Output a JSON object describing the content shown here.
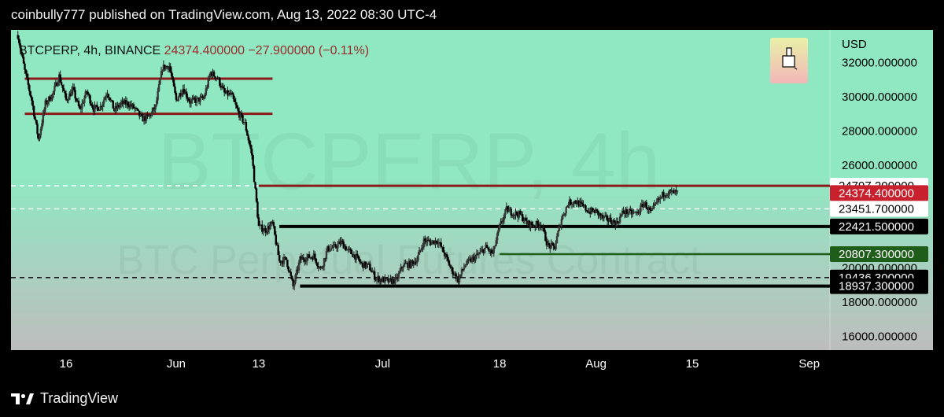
{
  "header": {
    "published": "coinbully777 published on TradingView.com, Aug 13, 2022 08:30 UTC-4"
  },
  "footer": {
    "brand": "TradingView"
  },
  "colors": {
    "bg_top": "#8fe8c2",
    "bg_bottom": "#bdbdbd",
    "red_line": "#8b1a1a",
    "black_line": "#000000",
    "green_line": "#1f5d1a",
    "label_red": "#c8202c",
    "label_green": "#1f5d1a",
    "quote_text": "#9c2a2a"
  },
  "chart_data": {
    "type": "candlestick",
    "symbol": "BTCPERP",
    "interval": "4h",
    "exchange": "BINANCE",
    "last_price": "24374.400000",
    "change": "−27.900000",
    "change_pct": "(−0.11%)",
    "watermark_symbol": "BTCPERP, 4h",
    "watermark_desc": "BTC Perpetual Futures Contract",
    "y_axis": {
      "unit": "USD",
      "ylim": [
        15200,
        33900
      ],
      "ticks": [
        {
          "value": 32000,
          "label": "32000.000000"
        },
        {
          "value": 30000,
          "label": "30000.000000"
        },
        {
          "value": 28000,
          "label": "28000.000000"
        },
        {
          "value": 26000,
          "label": "26000.000000"
        },
        {
          "value": 20000,
          "label": "20000.000000"
        },
        {
          "value": 18000,
          "label": "18000.000000"
        },
        {
          "value": 16000,
          "label": "16000.000000"
        }
      ]
    },
    "x_axis": {
      "xlim": [
        "2022-05-08",
        "2022-09-04"
      ],
      "ticks": [
        {
          "date": "2022-05-16",
          "label": "16"
        },
        {
          "date": "2022-06-01",
          "label": "Jun"
        },
        {
          "date": "2022-06-13",
          "label": "13"
        },
        {
          "date": "2022-07-01",
          "label": "Jul"
        },
        {
          "date": "2022-07-18",
          "label": "18"
        },
        {
          "date": "2022-08-01",
          "label": "Aug"
        },
        {
          "date": "2022-08-15",
          "label": "15"
        },
        {
          "date": "2022-09-01",
          "label": "Sep"
        }
      ]
    },
    "price_labels": [
      {
        "value": 24797.2,
        "label": "24797.200000",
        "style": "white"
      },
      {
        "value": 24374.4,
        "label": "24374.400000",
        "style": "red"
      },
      {
        "value": 23451.7,
        "label": "23451.700000",
        "style": "white"
      },
      {
        "value": 22421.5,
        "label": "22421.500000",
        "style": "black"
      },
      {
        "value": 20807.3,
        "label": "20807.300000",
        "style": "green"
      },
      {
        "value": 19436.3,
        "label": "19436.300000",
        "style": "black"
      },
      {
        "value": 18937.3,
        "label": "18937.300000",
        "style": "black"
      }
    ],
    "horizontal_lines": [
      {
        "value": 31050,
        "from": "2022-05-10",
        "to": "2022-06-15",
        "style": "red"
      },
      {
        "value": 29000,
        "from": "2022-05-10",
        "to": "2022-06-15",
        "style": "red"
      },
      {
        "value": 24797.2,
        "from": "2022-06-13",
        "to": "2022-09-04",
        "style": "red"
      },
      {
        "value": 22421.5,
        "from": "2022-06-16",
        "to": "2022-09-04",
        "style": "black"
      },
      {
        "value": 20807.3,
        "from": "2022-07-18",
        "to": "2022-09-04",
        "style": "green"
      },
      {
        "value": 18937.3,
        "from": "2022-06-19",
        "to": "2022-09-04",
        "style": "black"
      },
      {
        "value": 24797.2,
        "from": "2022-05-08",
        "to": "2022-06-13",
        "style": "dash-white"
      },
      {
        "value": 23451.7,
        "from": "2022-05-08",
        "to": "2022-09-04",
        "style": "dash-white"
      },
      {
        "value": 19436.3,
        "from": "2022-05-08",
        "to": "2022-09-04",
        "style": "dash-black"
      }
    ],
    "price_path": [
      [
        "2022-05-09",
        33600
      ],
      [
        "2022-05-10",
        31500
      ],
      [
        "2022-05-11",
        29800
      ],
      [
        "2022-05-12",
        27500
      ],
      [
        "2022-05-13",
        29600
      ],
      [
        "2022-05-14",
        30100
      ],
      [
        "2022-05-15",
        31200
      ],
      [
        "2022-05-16",
        29800
      ],
      [
        "2022-05-17",
        30400
      ],
      [
        "2022-05-18",
        29200
      ],
      [
        "2022-05-19",
        30300
      ],
      [
        "2022-05-20",
        29300
      ],
      [
        "2022-05-21",
        29400
      ],
      [
        "2022-05-22",
        30300
      ],
      [
        "2022-05-23",
        29200
      ],
      [
        "2022-05-24",
        29600
      ],
      [
        "2022-05-25",
        29600
      ],
      [
        "2022-05-26",
        29300
      ],
      [
        "2022-05-27",
        28700
      ],
      [
        "2022-05-28",
        28800
      ],
      [
        "2022-05-29",
        29400
      ],
      [
        "2022-05-30",
        31700
      ],
      [
        "2022-05-31",
        31800
      ],
      [
        "2022-06-01",
        29800
      ],
      [
        "2022-06-02",
        30500
      ],
      [
        "2022-06-03",
        29700
      ],
      [
        "2022-06-04",
        29800
      ],
      [
        "2022-06-05",
        29900
      ],
      [
        "2022-06-06",
        31400
      ],
      [
        "2022-06-07",
        31100
      ],
      [
        "2022-06-08",
        30200
      ],
      [
        "2022-06-09",
        30100
      ],
      [
        "2022-06-10",
        29100
      ],
      [
        "2022-06-11",
        28400
      ],
      [
        "2022-06-12",
        26600
      ],
      [
        "2022-06-13",
        22400
      ],
      [
        "2022-06-14",
        22200
      ],
      [
        "2022-06-15",
        22600
      ],
      [
        "2022-06-16",
        20400
      ],
      [
        "2022-06-17",
        20500
      ],
      [
        "2022-06-18",
        18900
      ],
      [
        "2022-06-19",
        20500
      ],
      [
        "2022-06-20",
        20600
      ],
      [
        "2022-06-21",
        20700
      ],
      [
        "2022-06-22",
        19900
      ],
      [
        "2022-06-23",
        21100
      ],
      [
        "2022-06-24",
        21200
      ],
      [
        "2022-06-25",
        21500
      ],
      [
        "2022-06-26",
        21000
      ],
      [
        "2022-06-27",
        20700
      ],
      [
        "2022-06-28",
        20200
      ],
      [
        "2022-06-29",
        20100
      ],
      [
        "2022-06-30",
        19400
      ],
      [
        "2022-07-01",
        19300
      ],
      [
        "2022-07-02",
        19200
      ],
      [
        "2022-07-03",
        19300
      ],
      [
        "2022-07-04",
        20200
      ],
      [
        "2022-07-05",
        20200
      ],
      [
        "2022-07-06",
        20500
      ],
      [
        "2022-07-07",
        21600
      ],
      [
        "2022-07-08",
        21500
      ],
      [
        "2022-07-09",
        21600
      ],
      [
        "2022-07-10",
        20800
      ],
      [
        "2022-07-11",
        19900
      ],
      [
        "2022-07-12",
        19300
      ],
      [
        "2022-07-13",
        20200
      ],
      [
        "2022-07-14",
        20500
      ],
      [
        "2022-07-15",
        20800
      ],
      [
        "2022-07-16",
        21200
      ],
      [
        "2022-07-17",
        20800
      ],
      [
        "2022-07-18",
        22400
      ],
      [
        "2022-07-19",
        23400
      ],
      [
        "2022-07-20",
        23200
      ],
      [
        "2022-07-21",
        23100
      ],
      [
        "2022-07-22",
        22600
      ],
      [
        "2022-07-23",
        22500
      ],
      [
        "2022-07-24",
        22600
      ],
      [
        "2022-07-25",
        21300
      ],
      [
        "2022-07-26",
        21200
      ],
      [
        "2022-07-27",
        22900
      ],
      [
        "2022-07-28",
        23800
      ],
      [
        "2022-07-29",
        23900
      ],
      [
        "2022-07-30",
        23600
      ],
      [
        "2022-07-31",
        23300
      ],
      [
        "2022-08-01",
        23300
      ],
      [
        "2022-08-02",
        22900
      ],
      [
        "2022-08-03",
        22800
      ],
      [
        "2022-08-04",
        22600
      ],
      [
        "2022-08-05",
        23300
      ],
      [
        "2022-08-06",
        23200
      ],
      [
        "2022-08-07",
        23200
      ],
      [
        "2022-08-08",
        23800
      ],
      [
        "2022-08-09",
        23200
      ],
      [
        "2022-08-10",
        23900
      ],
      [
        "2022-08-11",
        24400
      ],
      [
        "2022-08-12",
        24400
      ],
      [
        "2022-08-13",
        24370
      ]
    ]
  }
}
